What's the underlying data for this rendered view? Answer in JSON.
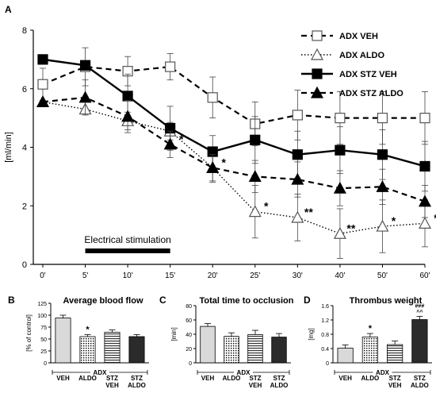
{
  "chart_data": [
    {
      "type": "line",
      "panel_label": "A",
      "ylabel": "[ml/min]",
      "ylim": [
        0,
        8
      ],
      "yticks": [
        0,
        2,
        4,
        6,
        8
      ],
      "x": [
        "0'",
        "5'",
        "10'",
        "15'",
        "20'",
        "25'",
        "30'",
        "40'",
        "50'",
        "60'"
      ],
      "annotation": "Electrical stimulation",
      "stimulation_span": [
        "5'",
        "15'"
      ],
      "legend_position": "top-right",
      "series": [
        {
          "name": "ADX VEH",
          "marker": "open-square",
          "line": "dashed",
          "values": [
            6.15,
            6.75,
            6.6,
            6.75,
            5.7,
            4.8,
            5.1,
            5.0,
            5.0,
            5.0
          ],
          "errors": [
            0.55,
            0.65,
            0.5,
            0.45,
            0.7,
            0.75,
            0.85,
            0.9,
            0.9,
            0.9
          ]
        },
        {
          "name": "ADX ALDO",
          "marker": "open-triangle",
          "line": "dotted",
          "values": [
            5.55,
            5.3,
            4.9,
            4.55,
            3.3,
            1.8,
            1.6,
            1.05,
            1.3,
            1.4
          ],
          "errors": [
            0.0,
            0.0,
            0.3,
            0.3,
            0.5,
            0.9,
            0.8,
            0.85,
            0.9,
            0.8
          ]
        },
        {
          "name": "ADX STZ VEH",
          "marker": "filled-square",
          "line": "solid",
          "values": [
            7.0,
            6.8,
            5.75,
            4.65,
            3.85,
            4.25,
            3.75,
            3.9,
            3.75,
            3.35
          ],
          "errors": [
            0.0,
            0.0,
            0.75,
            0.75,
            0.55,
            0.8,
            0.8,
            0.8,
            0.85,
            0.85
          ]
        },
        {
          "name": "ADX STZ ALDO",
          "marker": "filled-triangle",
          "line": "dashed",
          "values": [
            5.55,
            5.7,
            5.05,
            4.1,
            3.3,
            3.0,
            2.9,
            2.6,
            2.65,
            2.15
          ],
          "errors": [
            0.0,
            0.6,
            0.55,
            0.45,
            0.45,
            0.55,
            0.6,
            0.6,
            0.6,
            0.55
          ]
        }
      ],
      "significance": [
        {
          "x": "15'",
          "label": "*"
        },
        {
          "x": "20'",
          "label": "*"
        },
        {
          "x": "25'",
          "label": "*"
        },
        {
          "x": "30'",
          "label": "**"
        },
        {
          "x": "40'",
          "label": "**"
        },
        {
          "x": "50'",
          "label": "*"
        },
        {
          "x": "60'",
          "label": "*"
        }
      ]
    },
    {
      "type": "bar",
      "panel_label": "B",
      "title": "Average blood flow",
      "ylabel": "[% of control]",
      "ylim": [
        0,
        125
      ],
      "yticks": [
        0,
        25,
        50,
        75,
        100,
        125
      ],
      "categories": [
        "VEH",
        "ALDO",
        "STZ VEH",
        "STZ ALDO"
      ],
      "group_label": "ADX",
      "values": [
        94,
        55,
        64,
        55
      ],
      "errors": [
        6,
        4,
        5,
        4
      ],
      "annotations": [
        "",
        "*",
        "",
        ""
      ]
    },
    {
      "type": "bar",
      "panel_label": "C",
      "title": "Total time to occlusion",
      "ylabel": "[min]",
      "ylim": [
        0,
        80
      ],
      "yticks": [
        0,
        20,
        40,
        60,
        80
      ],
      "categories": [
        "VEH",
        "ALDO",
        "STZ VEH",
        "STZ ALDO"
      ],
      "group_label": "ADX",
      "values": [
        51,
        37,
        39.5,
        36
      ],
      "errors": [
        4,
        5,
        6,
        5
      ],
      "annotations": [
        "",
        "",
        "",
        ""
      ]
    },
    {
      "type": "bar",
      "panel_label": "D",
      "title": "Thrombus weight",
      "ylabel": "[mg]",
      "ylim": [
        0,
        1.6
      ],
      "yticks": [
        0,
        0.4,
        0.8,
        1.2,
        1.6
      ],
      "categories": [
        "VEH",
        "ALDO",
        "STZ VEH",
        "STZ ALDO"
      ],
      "group_label": "ADX",
      "values": [
        0.41,
        0.72,
        0.51,
        1.21
      ],
      "errors": [
        0.09,
        0.1,
        0.1,
        0.09
      ],
      "annotations": [
        "",
        "*",
        "",
        "###\n^^"
      ]
    }
  ]
}
